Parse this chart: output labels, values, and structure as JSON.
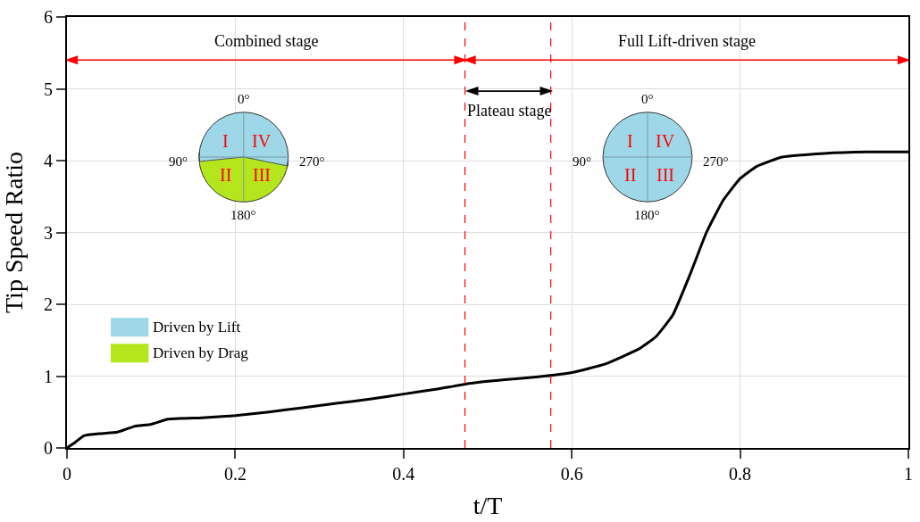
{
  "chart_data": {
    "type": "line",
    "xlabel": "t/T",
    "ylabel": "Tip Speed Ratio",
    "x": [
      0,
      0.01,
      0.02,
      0.04,
      0.06,
      0.08,
      0.1,
      0.12,
      0.16,
      0.2,
      0.24,
      0.28,
      0.32,
      0.36,
      0.4,
      0.44,
      0.48,
      0.52,
      0.56,
      0.6,
      0.64,
      0.68,
      0.7,
      0.72,
      0.74,
      0.76,
      0.78,
      0.8,
      0.82,
      0.85,
      0.9,
      0.95,
      1.0
    ],
    "series": [
      {
        "color": "#000000",
        "values": [
          0,
          0.08,
          0.17,
          0.2,
          0.22,
          0.3,
          0.33,
          0.4,
          0.42,
          0.45,
          0.5,
          0.56,
          0.62,
          0.68,
          0.75,
          0.82,
          0.9,
          0.95,
          0.99,
          1.05,
          1.17,
          1.38,
          1.55,
          1.85,
          2.4,
          3.0,
          3.45,
          3.75,
          3.92,
          4.05,
          4.1,
          4.12,
          4.12
        ]
      }
    ],
    "xlim": [
      0,
      1
    ],
    "ylim": [
      0,
      6
    ],
    "xticks": [
      0,
      0.2,
      0.4,
      0.6,
      0.8,
      1
    ],
    "yticks": [
      0,
      1,
      2,
      3,
      4,
      5,
      6
    ],
    "grid": true,
    "marker": "none",
    "line_style": "solid",
    "ref_lines": [
      {
        "axis": "x",
        "value": 0.473,
        "color": "#ff0000",
        "line_style": "dashed"
      },
      {
        "axis": "x",
        "value": 0.575,
        "color": "#ff0000",
        "line_style": "dashed"
      }
    ],
    "annotations": [
      "Combined stage",
      "Full Lift-driven stage",
      "Plateau stage",
      "0°",
      "90°",
      "270°",
      "180°",
      "I",
      "II",
      "III",
      "IV",
      "0°",
      "90°",
      "270°",
      "180°",
      "I",
      "II",
      "III",
      "IV",
      "Driven by Lift",
      "Driven by Drag"
    ]
  }
}
